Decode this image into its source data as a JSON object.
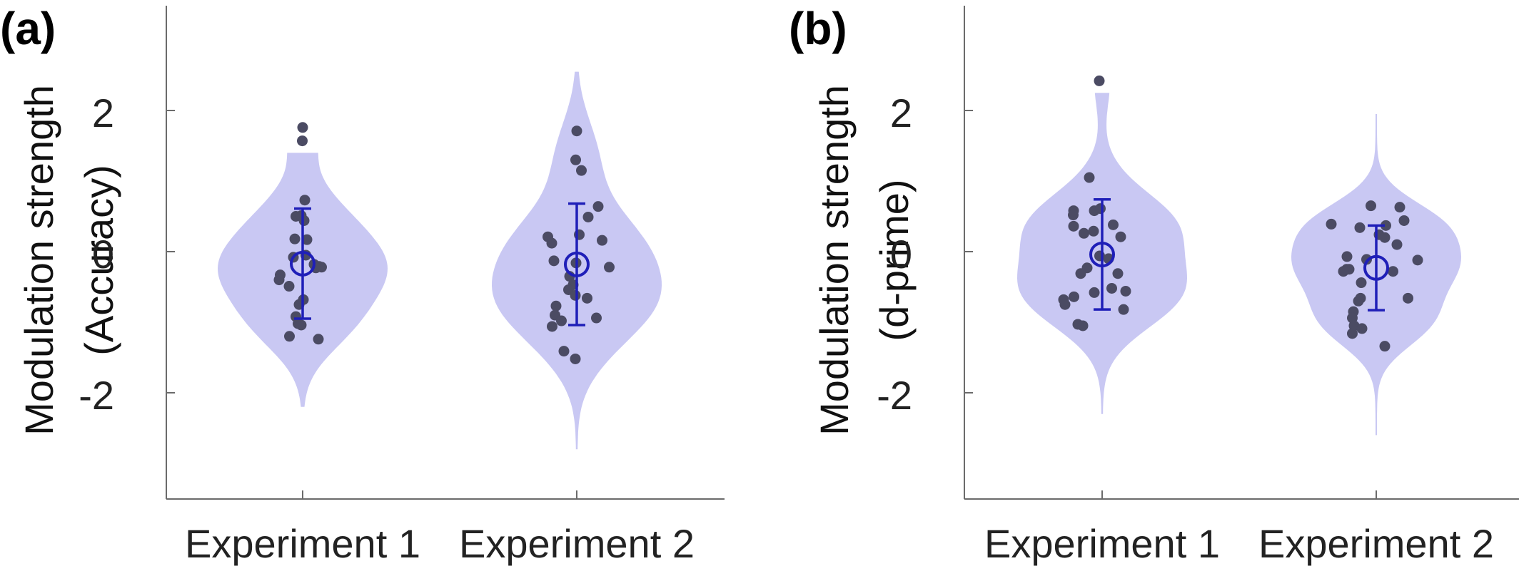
{
  "colors": {
    "violin_fill": "#c9c8f3",
    "point_fill": "#4b4b63",
    "mean_marker": "#1f1fb8",
    "axis": "#6b6b6b"
  },
  "chart_data": [
    {
      "type": "violin",
      "panel_label": "(a)",
      "title": "",
      "ylabel_line1": "Modulation strength",
      "ylabel_line2": "(Accuracy)",
      "ylim": [
        -3.5,
        3.5
      ],
      "yticks": [
        2,
        0,
        -2
      ],
      "ytick_labels": [
        "2",
        "0",
        "-2"
      ],
      "categories": [
        "Experiment 1",
        "Experiment 2"
      ],
      "groups": [
        {
          "name": "Experiment 1",
          "mean": -0.17,
          "ci": [
            -0.95,
            0.61
          ],
          "violin_range": [
            -2.2,
            1.4
          ],
          "points": [
            {
              "dx": 0.0,
              "y": 1.76
            },
            {
              "dx": -0.01,
              "y": 1.57
            },
            {
              "dx": 0.06,
              "y": 0.73
            },
            {
              "dx": -0.19,
              "y": 0.5
            },
            {
              "dx": -0.04,
              "y": 0.51
            },
            {
              "dx": 0.04,
              "y": 0.44
            },
            {
              "dx": -0.22,
              "y": 0.18
            },
            {
              "dx": 0.12,
              "y": 0.17
            },
            {
              "dx": -0.26,
              "y": -0.08
            },
            {
              "dx": 0.09,
              "y": -0.05
            },
            {
              "dx": 0.32,
              "y": -0.18
            },
            {
              "dx": 0.46,
              "y": -0.21
            },
            {
              "dx": 0.53,
              "y": -0.22
            },
            {
              "dx": 0.37,
              "y": -0.23
            },
            {
              "dx": -0.63,
              "y": -0.33
            },
            {
              "dx": -0.66,
              "y": -0.4
            },
            {
              "dx": -0.38,
              "y": -0.49
            },
            {
              "dx": 0.02,
              "y": -0.68
            },
            {
              "dx": -0.1,
              "y": -0.75
            },
            {
              "dx": -0.19,
              "y": -0.92
            },
            {
              "dx": -0.13,
              "y": -1.02
            },
            {
              "dx": -0.04,
              "y": -1.04
            },
            {
              "dx": -0.37,
              "y": -1.2
            },
            {
              "dx": 0.44,
              "y": -1.24
            }
          ]
        },
        {
          "name": "Experiment 2",
          "mean": -0.18,
          "ci": [
            -1.04,
            0.68
          ],
          "violin_range": [
            -2.8,
            2.55
          ],
          "points": [
            {
              "dx": 0.0,
              "y": 1.71
            },
            {
              "dx": -0.03,
              "y": 1.3
            },
            {
              "dx": 0.13,
              "y": 1.15
            },
            {
              "dx": 0.6,
              "y": 0.64
            },
            {
              "dx": 0.32,
              "y": 0.49
            },
            {
              "dx": -0.81,
              "y": 0.21
            },
            {
              "dx": 0.07,
              "y": 0.24
            },
            {
              "dx": -0.7,
              "y": 0.12
            },
            {
              "dx": 0.71,
              "y": 0.16
            },
            {
              "dx": -0.64,
              "y": -0.13
            },
            {
              "dx": -0.02,
              "y": -0.16
            },
            {
              "dx": 0.91,
              "y": -0.22
            },
            {
              "dx": -0.2,
              "y": -0.35
            },
            {
              "dx": -0.1,
              "y": -0.47
            },
            {
              "dx": -0.23,
              "y": -0.54
            },
            {
              "dx": -0.04,
              "y": -0.62
            },
            {
              "dx": 0.29,
              "y": -0.66
            },
            {
              "dx": -0.58,
              "y": -0.77
            },
            {
              "dx": -0.61,
              "y": -0.9
            },
            {
              "dx": 0.55,
              "y": -0.94
            },
            {
              "dx": -0.43,
              "y": -0.98
            },
            {
              "dx": -0.69,
              "y": -1.06
            },
            {
              "dx": -0.36,
              "y": -1.41
            },
            {
              "dx": -0.04,
              "y": -1.52
            }
          ]
        }
      ]
    },
    {
      "type": "violin",
      "panel_label": "(b)",
      "title": "",
      "ylabel_line1": "Modulation strength",
      "ylabel_line2": "(d-prime)",
      "ylim": [
        -3.5,
        3.5
      ],
      "yticks": [
        2,
        0,
        -2
      ],
      "ytick_labels": [
        "2",
        "0",
        "-2"
      ],
      "categories": [
        "Experiment 1",
        "Experiment 2"
      ],
      "groups": [
        {
          "name": "Experiment 1",
          "mean": -0.04,
          "ci": [
            -0.82,
            0.74
          ],
          "violin_range": [
            -2.3,
            2.25
          ],
          "points": [
            {
              "dx": -0.08,
              "y": 2.42
            },
            {
              "dx": -0.36,
              "y": 1.05
            },
            {
              "dx": -0.8,
              "y": 0.58
            },
            {
              "dx": -0.81,
              "y": 0.52
            },
            {
              "dx": -0.22,
              "y": 0.58
            },
            {
              "dx": -0.05,
              "y": 0.61
            },
            {
              "dx": -0.8,
              "y": 0.36
            },
            {
              "dx": -0.51,
              "y": 0.26
            },
            {
              "dx": -0.24,
              "y": 0.29
            },
            {
              "dx": 0.31,
              "y": 0.38
            },
            {
              "dx": 0.52,
              "y": 0.21
            },
            {
              "dx": -0.07,
              "y": -0.06
            },
            {
              "dx": 0.18,
              "y": -0.1
            },
            {
              "dx": -0.42,
              "y": -0.23
            },
            {
              "dx": -0.6,
              "y": -0.31
            },
            {
              "dx": 0.44,
              "y": -0.31
            },
            {
              "dx": 0.27,
              "y": -0.52
            },
            {
              "dx": 0.66,
              "y": -0.56
            },
            {
              "dx": -0.22,
              "y": -0.58
            },
            {
              "dx": -0.79,
              "y": -0.64
            },
            {
              "dx": -1.08,
              "y": -0.68
            },
            {
              "dx": -1.04,
              "y": -0.75
            },
            {
              "dx": 0.6,
              "y": -0.82
            },
            {
              "dx": -0.68,
              "y": -1.03
            },
            {
              "dx": -0.54,
              "y": -1.05
            }
          ]
        },
        {
          "name": "Experiment 2",
          "mean": -0.23,
          "ci": [
            -0.83,
            0.37
          ],
          "violin_range": [
            -2.6,
            1.95
          ],
          "points": [
            {
              "dx": -0.15,
              "y": 0.65
            },
            {
              "dx": 0.66,
              "y": 0.63
            },
            {
              "dx": -1.26,
              "y": 0.39
            },
            {
              "dx": 0.27,
              "y": 0.37
            },
            {
              "dx": 0.78,
              "y": 0.44
            },
            {
              "dx": -0.46,
              "y": 0.34
            },
            {
              "dx": 0.08,
              "y": 0.24
            },
            {
              "dx": 0.24,
              "y": 0.2
            },
            {
              "dx": 0.58,
              "y": 0.1
            },
            {
              "dx": -0.82,
              "y": -0.07
            },
            {
              "dx": -0.27,
              "y": -0.11
            },
            {
              "dx": 1.16,
              "y": -0.12
            },
            {
              "dx": -0.83,
              "y": -0.25
            },
            {
              "dx": -0.76,
              "y": -0.25
            },
            {
              "dx": -0.92,
              "y": -0.28
            },
            {
              "dx": -0.42,
              "y": -0.44
            },
            {
              "dx": 0.47,
              "y": -0.28
            },
            {
              "dx": -0.44,
              "y": -0.66
            },
            {
              "dx": -0.5,
              "y": -0.7
            },
            {
              "dx": 0.89,
              "y": -0.66
            },
            {
              "dx": -0.64,
              "y": -0.85
            },
            {
              "dx": -0.67,
              "y": -0.94
            },
            {
              "dx": -0.62,
              "y": -1.05
            },
            {
              "dx": -0.4,
              "y": -1.09
            },
            {
              "dx": -0.67,
              "y": -1.16
            },
            {
              "dx": 0.24,
              "y": -1.34
            }
          ]
        }
      ]
    }
  ]
}
